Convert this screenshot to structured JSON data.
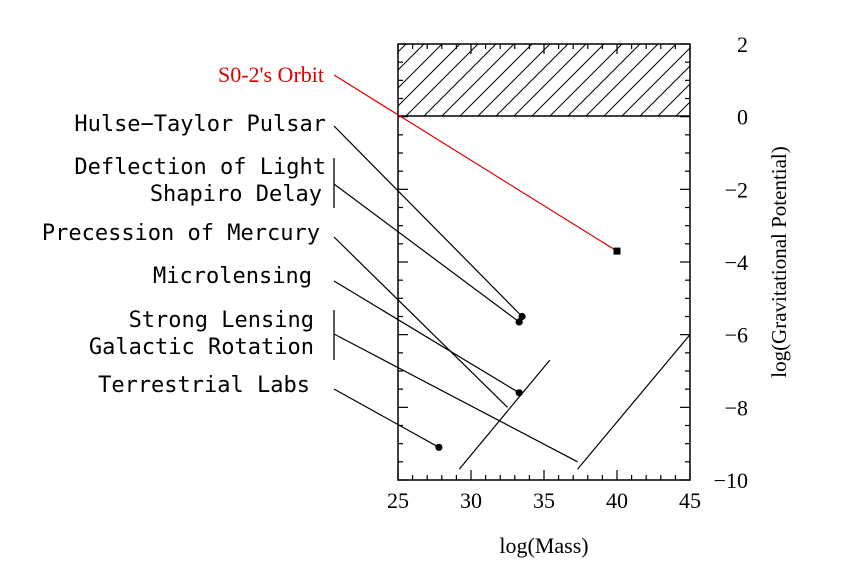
{
  "chart_data": {
    "type": "scatter",
    "title": "",
    "xlabel": "log(Mass)",
    "ylabel": "log(Gravitational Potential)",
    "xlim": [
      25,
      45
    ],
    "ylim": [
      -10,
      2
    ],
    "x_ticks": [
      "25",
      "30",
      "35",
      "40",
      "45"
    ],
    "y_ticks": [
      "2",
      "0",
      "−2",
      "−4",
      "−6",
      "−8",
      "−10"
    ],
    "x_tick_values": [
      25,
      30,
      35,
      40,
      45
    ],
    "y_tick_values": [
      2,
      0,
      -2,
      -4,
      -6,
      -8,
      -10
    ],
    "hatched_region": {
      "x": [
        25,
        45
      ],
      "y": [
        0,
        2
      ]
    },
    "points": [
      {
        "x": 40.0,
        "y": -3.7,
        "marker": "square"
      },
      {
        "x": 33.5,
        "y": -5.5,
        "marker": "circle"
      },
      {
        "x": 33.3,
        "y": -5.65,
        "marker": "circle"
      },
      {
        "x": 33.3,
        "y": -7.6,
        "marker": "circle"
      },
      {
        "x": 27.8,
        "y": -9.1,
        "marker": "circle"
      }
    ],
    "segments": [
      {
        "x1": 29.2,
        "y1": -9.7,
        "x2": 35.4,
        "y2": -6.7
      },
      {
        "x1": 37.3,
        "y1": -9.7,
        "x2": 45.0,
        "y2": -6.0
      }
    ],
    "annotations": [
      {
        "label": "S0-2's Orbit",
        "color": "#e00000",
        "targets": [
          [
            40.0,
            -3.7
          ]
        ]
      },
      {
        "label": "Hulse−Taylor Pulsar",
        "color": "#000000",
        "targets": [
          [
            33.5,
            -5.5
          ]
        ]
      },
      {
        "label": "Deflection of Light",
        "group": "deflection",
        "color": "#000000",
        "targets": [
          [
            33.3,
            -5.65
          ]
        ]
      },
      {
        "label": "Shapiro Delay",
        "group": "deflection",
        "color": "#000000",
        "targets": []
      },
      {
        "label": "Precession of Mercury",
        "color": "#000000",
        "targets": [
          [
            32.5,
            -8.0
          ]
        ]
      },
      {
        "label": "Microlensing",
        "color": "#000000",
        "targets": [
          [
            33.3,
            -7.6
          ]
        ]
      },
      {
        "label": "Strong Lensing",
        "group": "lensing",
        "color": "#000000",
        "targets": [
          [
            37.3,
            -9.5
          ]
        ]
      },
      {
        "label": "Galactic Rotation",
        "group": "lensing",
        "color": "#000000",
        "targets": []
      },
      {
        "label": "Terrestrial Labs",
        "color": "#000000",
        "targets": [
          [
            27.8,
            -9.1
          ]
        ]
      }
    ]
  }
}
